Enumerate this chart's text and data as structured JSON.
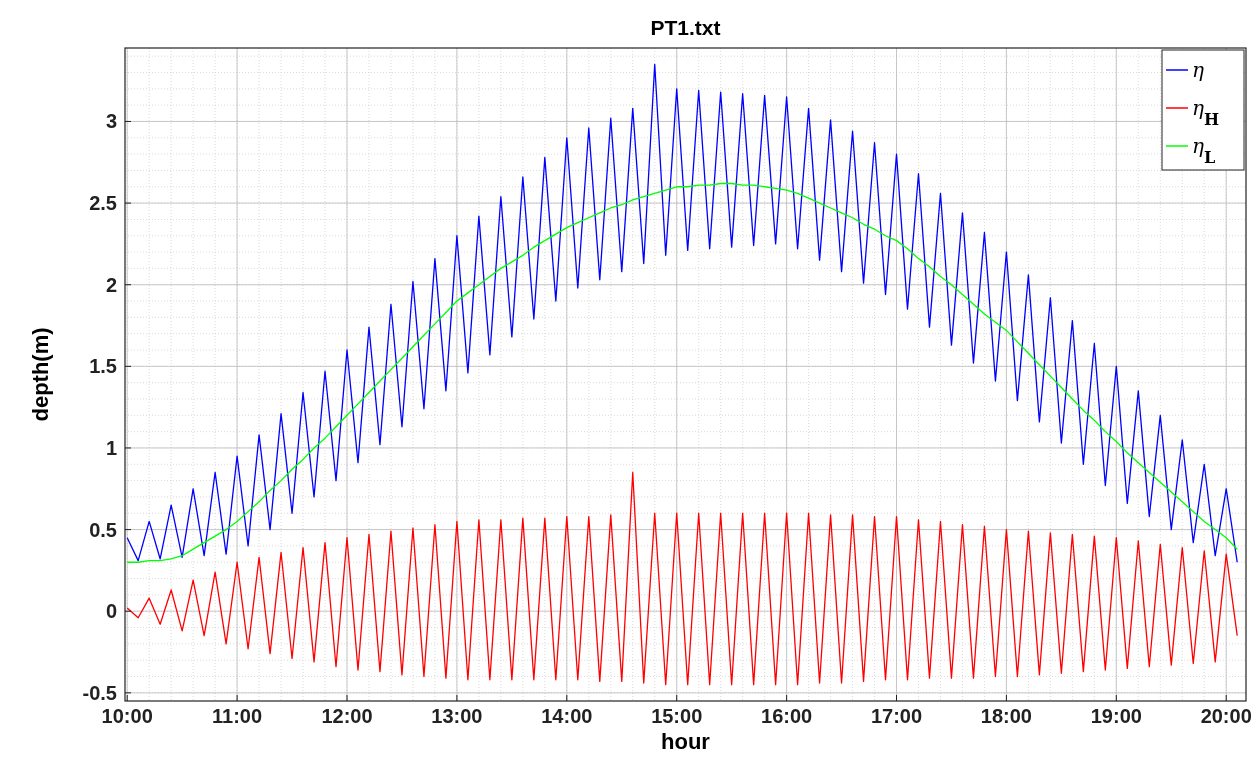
{
  "chart_data": {
    "type": "line",
    "title": "PT1.txt",
    "xlabel": "hour",
    "ylabel": "depth(m)",
    "x": [
      10.0,
      10.1,
      10.2,
      10.3,
      10.4,
      10.5,
      10.6,
      10.7,
      10.8,
      10.9,
      11.0,
      11.1,
      11.2,
      11.3,
      11.4,
      11.5,
      11.6,
      11.7,
      11.8,
      11.9,
      12.0,
      12.1,
      12.2,
      12.3,
      12.4,
      12.5,
      12.6,
      12.7,
      12.8,
      12.9,
      13.0,
      13.1,
      13.2,
      13.3,
      13.4,
      13.5,
      13.6,
      13.7,
      13.8,
      13.9,
      14.0,
      14.1,
      14.2,
      14.3,
      14.4,
      14.5,
      14.6,
      14.7,
      14.8,
      14.9,
      15.0,
      15.1,
      15.2,
      15.3,
      15.4,
      15.5,
      15.6,
      15.7,
      15.8,
      15.9,
      16.0,
      16.1,
      16.2,
      16.3,
      16.4,
      16.5,
      16.6,
      16.7,
      16.8,
      16.9,
      17.0,
      17.1,
      17.2,
      17.3,
      17.4,
      17.5,
      17.6,
      17.7,
      17.8,
      17.9,
      18.0,
      18.1,
      18.2,
      18.3,
      18.4,
      18.5,
      18.6,
      18.7,
      18.8,
      18.9,
      19.0,
      19.1,
      19.2,
      19.3,
      19.4,
      19.5,
      19.6,
      19.7,
      19.8,
      19.9,
      20.0,
      20.1
    ],
    "series": [
      {
        "name": "η",
        "color": "#0000ff",
        "values": [
          0.45,
          0.31,
          0.55,
          0.32,
          0.65,
          0.33,
          0.75,
          0.34,
          0.85,
          0.35,
          0.95,
          0.4,
          1.08,
          0.5,
          1.21,
          0.6,
          1.34,
          0.7,
          1.47,
          0.8,
          1.6,
          0.91,
          1.74,
          1.02,
          1.88,
          1.13,
          2.02,
          1.24,
          2.16,
          1.35,
          2.3,
          1.46,
          2.42,
          1.57,
          2.54,
          1.68,
          2.66,
          1.79,
          2.78,
          1.9,
          2.9,
          1.98,
          2.96,
          2.03,
          3.02,
          2.08,
          3.08,
          2.13,
          3.35,
          2.18,
          3.2,
          2.21,
          3.19,
          2.22,
          3.18,
          2.23,
          3.17,
          2.24,
          3.16,
          2.25,
          3.15,
          2.22,
          3.08,
          2.15,
          3.01,
          2.08,
          2.94,
          2.01,
          2.87,
          1.94,
          2.8,
          1.85,
          2.68,
          1.74,
          2.56,
          1.63,
          2.44,
          1.52,
          2.32,
          1.41,
          2.2,
          1.29,
          2.06,
          1.16,
          1.92,
          1.03,
          1.78,
          0.9,
          1.64,
          0.77,
          1.5,
          0.66,
          1.35,
          0.58,
          1.2,
          0.5,
          1.05,
          0.42,
          0.9,
          0.34,
          0.75,
          0.3
        ]
      },
      {
        "name": "η$_{H}$",
        "color": "#ff0000",
        "values": [
          0.02,
          -0.04,
          0.08,
          -0.08,
          0.13,
          -0.12,
          0.19,
          -0.15,
          0.24,
          -0.2,
          0.3,
          -0.23,
          0.33,
          -0.26,
          0.36,
          -0.29,
          0.39,
          -0.31,
          0.42,
          -0.34,
          0.45,
          -0.36,
          0.47,
          -0.37,
          0.49,
          -0.39,
          0.51,
          -0.4,
          0.53,
          -0.41,
          0.55,
          -0.42,
          0.56,
          -0.42,
          0.56,
          -0.42,
          0.57,
          -0.42,
          0.57,
          -0.42,
          0.58,
          -0.42,
          0.58,
          -0.43,
          0.59,
          -0.43,
          0.85,
          -0.44,
          0.6,
          -0.45,
          0.6,
          -0.45,
          0.6,
          -0.45,
          0.6,
          -0.45,
          0.6,
          -0.45,
          0.6,
          -0.45,
          0.6,
          -0.45,
          0.6,
          -0.44,
          0.59,
          -0.44,
          0.59,
          -0.43,
          0.58,
          -0.42,
          0.58,
          -0.42,
          0.56,
          -0.41,
          0.55,
          -0.41,
          0.53,
          -0.41,
          0.52,
          -0.4,
          0.5,
          -0.4,
          0.49,
          -0.39,
          0.48,
          -0.38,
          0.47,
          -0.37,
          0.46,
          -0.36,
          0.45,
          -0.35,
          0.43,
          -0.34,
          0.41,
          -0.33,
          0.39,
          -0.32,
          0.37,
          -0.31,
          0.35,
          -0.15
        ]
      },
      {
        "name": "η$_{L}$",
        "color": "#00ff00",
        "values": [
          0.3,
          0.3,
          0.31,
          0.31,
          0.32,
          0.34,
          0.38,
          0.42,
          0.46,
          0.5,
          0.55,
          0.61,
          0.67,
          0.74,
          0.8,
          0.87,
          0.93,
          1.0,
          1.06,
          1.13,
          1.2,
          1.27,
          1.34,
          1.41,
          1.48,
          1.55,
          1.62,
          1.69,
          1.76,
          1.83,
          1.9,
          1.95,
          2.0,
          2.05,
          2.1,
          2.14,
          2.18,
          2.23,
          2.27,
          2.31,
          2.35,
          2.38,
          2.41,
          2.44,
          2.47,
          2.49,
          2.52,
          2.54,
          2.56,
          2.58,
          2.6,
          2.6,
          2.61,
          2.61,
          2.62,
          2.62,
          2.61,
          2.61,
          2.6,
          2.59,
          2.58,
          2.56,
          2.53,
          2.5,
          2.47,
          2.44,
          2.41,
          2.37,
          2.34,
          2.3,
          2.27,
          2.22,
          2.16,
          2.11,
          2.05,
          2.0,
          1.94,
          1.88,
          1.82,
          1.77,
          1.72,
          1.65,
          1.58,
          1.51,
          1.44,
          1.37,
          1.3,
          1.23,
          1.17,
          1.1,
          1.04,
          0.97,
          0.91,
          0.85,
          0.79,
          0.73,
          0.67,
          0.61,
          0.55,
          0.5,
          0.45,
          0.38
        ]
      }
    ],
    "xlim": [
      9.98,
      20.18
    ],
    "ylim": [
      -0.55,
      3.45
    ],
    "xticks": [
      {
        "value": 10,
        "label": "10:00"
      },
      {
        "value": 11,
        "label": "11:00"
      },
      {
        "value": 12,
        "label": "12:00"
      },
      {
        "value": 13,
        "label": "13:00"
      },
      {
        "value": 14,
        "label": "14:00"
      },
      {
        "value": 15,
        "label": "15:00"
      },
      {
        "value": 16,
        "label": "16:00"
      },
      {
        "value": 17,
        "label": "17:00"
      },
      {
        "value": 18,
        "label": "18:00"
      },
      {
        "value": 19,
        "label": "19:00"
      },
      {
        "value": 20,
        "label": "20:00"
      }
    ],
    "yticks": [
      -0.5,
      0,
      0.5,
      1,
      1.5,
      2,
      2.5,
      3
    ],
    "grid": true,
    "legend": "top right",
    "line_style": "solid",
    "marker": "none"
  }
}
